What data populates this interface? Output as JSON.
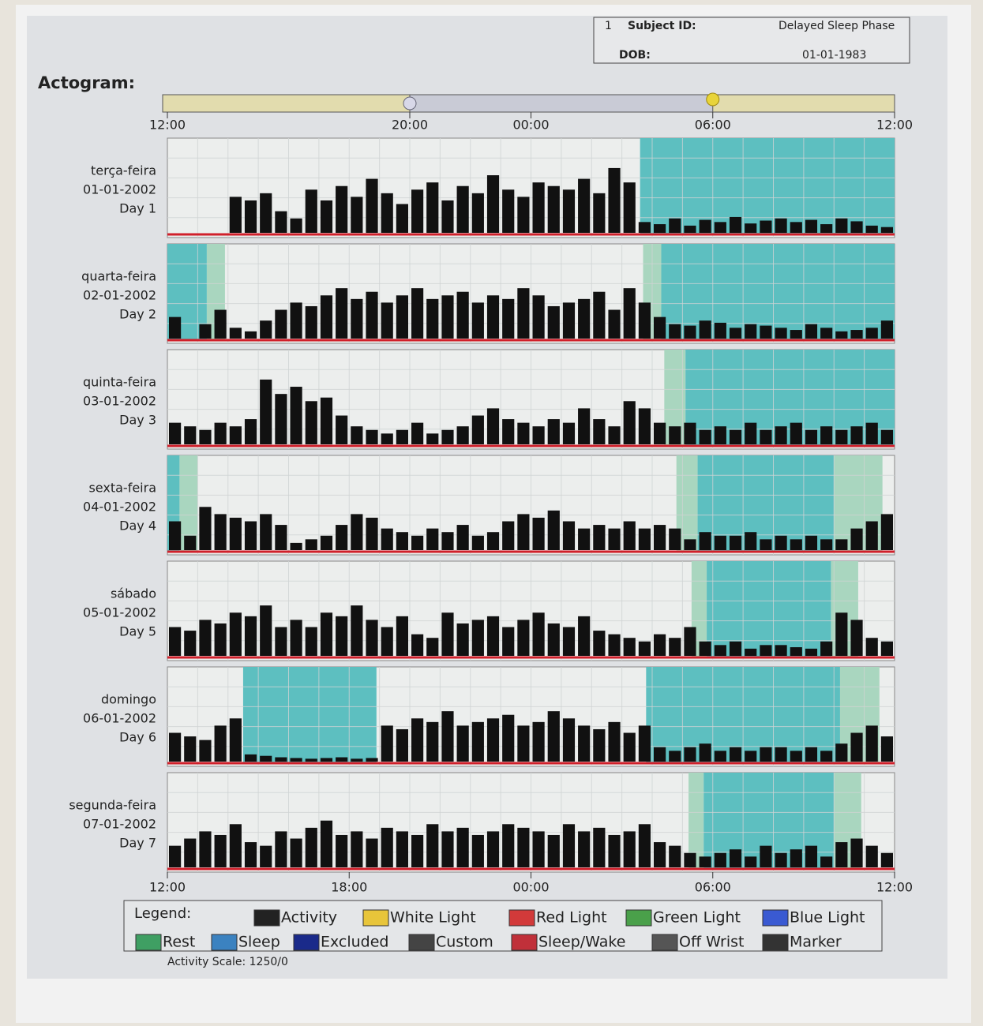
{
  "chart_data": {
    "type": "actogram",
    "title": "Actogram:",
    "subject": {
      "number": "1",
      "id_label": "Subject ID:",
      "id": "Delayed Sleep Phase",
      "dob_label": "DOB:",
      "dob": "01-01-1983"
    },
    "light_bar": {
      "dark": [
        8,
        18
      ],
      "xticks": [
        {
          "value": 0,
          "label": "12:00"
        },
        {
          "value": 8,
          "label": "20:00"
        },
        {
          "value": 12,
          "label": "00:00"
        },
        {
          "value": 18,
          "label": "06:00"
        },
        {
          "value": 24,
          "label": "12:00"
        }
      ]
    },
    "xlim": [
      0,
      24
    ],
    "xticks": [
      {
        "value": 0,
        "label": "12:00"
      },
      {
        "value": 6,
        "label": "18:00"
      },
      {
        "value": 12,
        "label": "00:00"
      },
      {
        "value": 18,
        "label": "06:00"
      },
      {
        "value": 24,
        "label": "12:00"
      }
    ],
    "ylim": [
      0,
      1250
    ],
    "activity_color": "#111111",
    "rest_color": "#a9d6bf",
    "sleep_color": "#5dbfc0",
    "days": [
      {
        "label": [
          "terça-feira",
          "01-01-2002",
          "Day 1"
        ],
        "rest": [],
        "sleep": [
          [
            15.6,
            24
          ]
        ],
        "activity": [
          0,
          0,
          0,
          0,
          500,
          450,
          550,
          300,
          200,
          600,
          450,
          650,
          500,
          750,
          550,
          400,
          600,
          700,
          450,
          650,
          550,
          800,
          600,
          500,
          700,
          650,
          600,
          750,
          550,
          900,
          700,
          150,
          120,
          200,
          100,
          180,
          150,
          220,
          130,
          170,
          200,
          150,
          180,
          120,
          200,
          160,
          100,
          80
        ]
      },
      {
        "label": [
          "quarta-feira",
          "02-01-2002",
          "Day 2"
        ],
        "rest": [
          [
            1.3,
            1.9
          ],
          [
            15.7,
            16.3
          ]
        ],
        "sleep": [
          [
            0,
            1.3
          ],
          [
            16.3,
            24
          ]
        ],
        "activity": [
          300,
          0,
          200,
          400,
          150,
          100,
          250,
          400,
          500,
          450,
          600,
          700,
          550,
          650,
          500,
          600,
          700,
          550,
          600,
          650,
          500,
          600,
          550,
          700,
          600,
          450,
          500,
          550,
          650,
          400,
          700,
          500,
          300,
          200,
          180,
          250,
          220,
          150,
          200,
          180,
          150,
          120,
          200,
          150,
          100,
          120,
          150,
          250
        ]
      },
      {
        "label": [
          "quinta-feira",
          "03-01-2002",
          "Day 3"
        ],
        "rest": [
          [
            16.4,
            17.1
          ]
        ],
        "sleep": [
          [
            17.1,
            24
          ]
        ],
        "activity": [
          300,
          250,
          200,
          300,
          250,
          350,
          900,
          700,
          800,
          600,
          650,
          400,
          250,
          200,
          150,
          200,
          300,
          150,
          200,
          250,
          400,
          500,
          350,
          300,
          250,
          350,
          300,
          500,
          350,
          250,
          600,
          500,
          300,
          250,
          300,
          200,
          250,
          200,
          300,
          200,
          250,
          300,
          200,
          250,
          200,
          250,
          300,
          200
        ]
      },
      {
        "label": [
          "sexta-feira",
          "04-01-2002",
          "Day 4"
        ],
        "rest": [
          [
            0.4,
            1.0
          ],
          [
            16.8,
            17.5
          ],
          [
            22.0,
            23.6
          ]
        ],
        "sleep": [
          [
            0,
            0.4
          ],
          [
            17.5,
            22.0
          ]
        ],
        "activity": [
          400,
          200,
          600,
          500,
          450,
          400,
          500,
          350,
          100,
          150,
          200,
          350,
          500,
          450,
          300,
          250,
          200,
          300,
          250,
          350,
          200,
          250,
          400,
          500,
          450,
          550,
          400,
          300,
          350,
          300,
          400,
          300,
          350,
          300,
          150,
          250,
          200,
          200,
          250,
          150,
          200,
          150,
          200,
          150,
          150,
          300,
          400,
          500
        ]
      },
      {
        "label": [
          "sábado",
          "05-01-2002",
          "Day 5"
        ],
        "rest": [
          [
            17.3,
            17.8
          ],
          [
            21.9,
            22.8
          ]
        ],
        "sleep": [
          [
            17.8,
            21.9
          ]
        ],
        "activity": [
          400,
          350,
          500,
          450,
          600,
          550,
          700,
          400,
          500,
          400,
          600,
          550,
          700,
          500,
          400,
          550,
          300,
          250,
          600,
          450,
          500,
          550,
          400,
          500,
          600,
          450,
          400,
          550,
          350,
          300,
          250,
          200,
          300,
          250,
          400,
          200,
          150,
          200,
          100,
          150,
          150,
          120,
          100,
          200,
          600,
          500,
          250,
          200
        ]
      },
      {
        "label": [
          "domingo",
          "06-01-2002",
          "Day 6"
        ],
        "rest": [
          [
            22.2,
            23.5
          ]
        ],
        "sleep": [
          [
            2.5,
            6.9
          ],
          [
            15.8,
            22.2
          ]
        ],
        "activity": [
          400,
          350,
          300,
          500,
          600,
          100,
          80,
          60,
          50,
          40,
          50,
          60,
          40,
          50,
          500,
          450,
          600,
          550,
          700,
          500,
          550,
          600,
          650,
          500,
          550,
          700,
          600,
          500,
          450,
          550,
          400,
          500,
          200,
          150,
          200,
          250,
          150,
          200,
          150,
          200,
          200,
          150,
          200,
          150,
          250,
          400,
          500,
          350
        ]
      },
      {
        "label": [
          "segunda-feira",
          "07-01-2002",
          "Day 7"
        ],
        "rest": [
          [
            17.2,
            17.7
          ],
          [
            22.0,
            22.9
          ]
        ],
        "sleep": [
          [
            17.7,
            22.0
          ]
        ],
        "activity": [
          300,
          400,
          500,
          450,
          600,
          350,
          300,
          500,
          400,
          550,
          650,
          450,
          500,
          400,
          550,
          500,
          450,
          600,
          500,
          550,
          450,
          500,
          600,
          550,
          500,
          450,
          600,
          500,
          550,
          450,
          500,
          600,
          350,
          300,
          200,
          150,
          200,
          250,
          150,
          300,
          200,
          250,
          300,
          150,
          350,
          400,
          300,
          200
        ]
      }
    ],
    "legend_title": "Legend:",
    "legend": [
      {
        "name": "Activity",
        "color": "#222222"
      },
      {
        "name": "White Light",
        "color": "#e8c53a"
      },
      {
        "name": "Red Light",
        "color": "#d23a3a"
      },
      {
        "name": "Green Light",
        "color": "#4aa04a"
      },
      {
        "name": "Blue Light",
        "color": "#3a5ad2"
      },
      {
        "name": "Rest",
        "color": "#3f9f63"
      },
      {
        "name": "Sleep",
        "color": "#3b82c0"
      },
      {
        "name": "Excluded",
        "color": "#1a2a8a"
      },
      {
        "name": "Custom",
        "color": "#444444"
      },
      {
        "name": "Sleep/Wake",
        "color": "#c0303a"
      },
      {
        "name": "Off Wrist",
        "color": "#555555"
      },
      {
        "name": "Marker",
        "color": "#333333"
      }
    ],
    "activity_scale": "Activity Scale: 1250/0"
  }
}
